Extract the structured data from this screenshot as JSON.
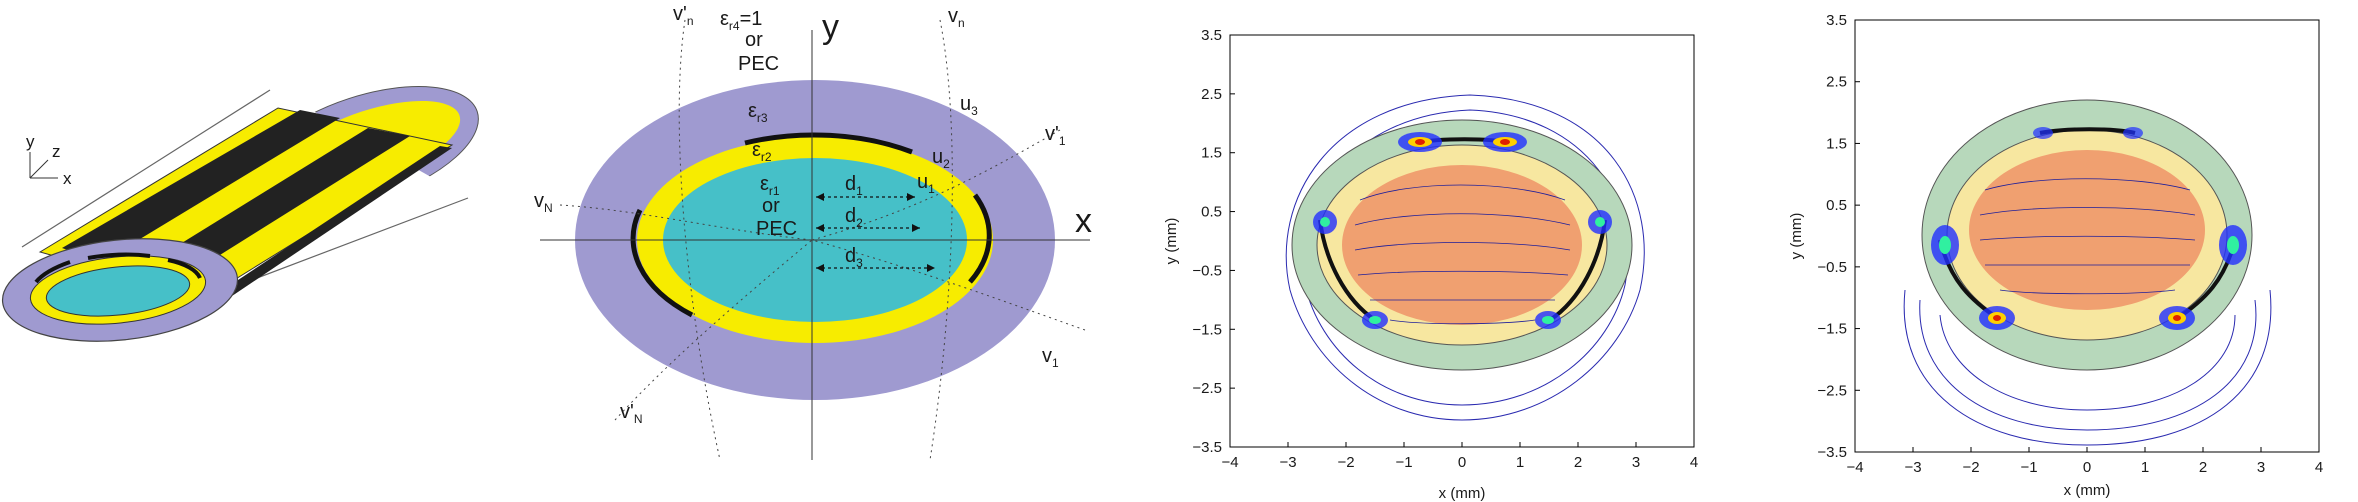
{
  "panel_a": {
    "axis_y": "y",
    "axis_z": "z",
    "axis_x": "x",
    "colors": {
      "outer": "#9f9ad0",
      "yellow": "#f7ec00",
      "inner": "#46c0c8",
      "strip": "#222222"
    }
  },
  "panel_b": {
    "axis_x": "x",
    "axis_y": "y",
    "eps_r4": "ε",
    "eps_r4_sub": "r4",
    "eps_r4_val": "=1",
    "top_or": "or",
    "top_pec": "PEC",
    "eps_r3": "ε",
    "eps_r3_sub": "r3",
    "eps_r2": "ε",
    "eps_r2_sub": "r2",
    "eps_r1": "ε",
    "eps_r1_sub": "r1",
    "mid_or": "or",
    "mid_pec": "PEC",
    "d1": "d",
    "d1_sub": "1",
    "d2": "d",
    "d2_sub": "2",
    "d3": "d",
    "d3_sub": "3",
    "u1": "u",
    "u1_sub": "1",
    "u2": "u",
    "u2_sub": "2",
    "u3": "u",
    "u3_sub": "3",
    "vn_prime": "v'",
    "vn_prime_sub": "n",
    "vn": "v",
    "vn_sub": "n",
    "v1_prime": "v'",
    "v1_prime_sub": "1",
    "v1": "v",
    "v1_sub": "1",
    "vN": "v",
    "vN_sub": "N",
    "vN_prime": "v'",
    "vN_prime_sub": "N"
  },
  "plot_c": {
    "xlabel": "x (mm)",
    "ylabel": "y (mm)",
    "xticks": [
      "−4",
      "−3",
      "−2",
      "−1",
      "0",
      "1",
      "2",
      "3",
      "4"
    ],
    "yticks": [
      "3.5",
      "2.5",
      "1.5",
      "0.5",
      "−0.5",
      "−1.5",
      "−2.5",
      "−3.5"
    ]
  },
  "plot_d": {
    "xlabel": "x (mm)",
    "ylabel": "y (mm)",
    "xticks": [
      "−4",
      "−3",
      "−2",
      "−1",
      "0",
      "1",
      "2",
      "3",
      "4"
    ],
    "yticks": [
      "3.5",
      "2.5",
      "1.5",
      "0.5",
      "−0.5",
      "−1.5",
      "−2.5",
      "−3.5"
    ]
  }
}
